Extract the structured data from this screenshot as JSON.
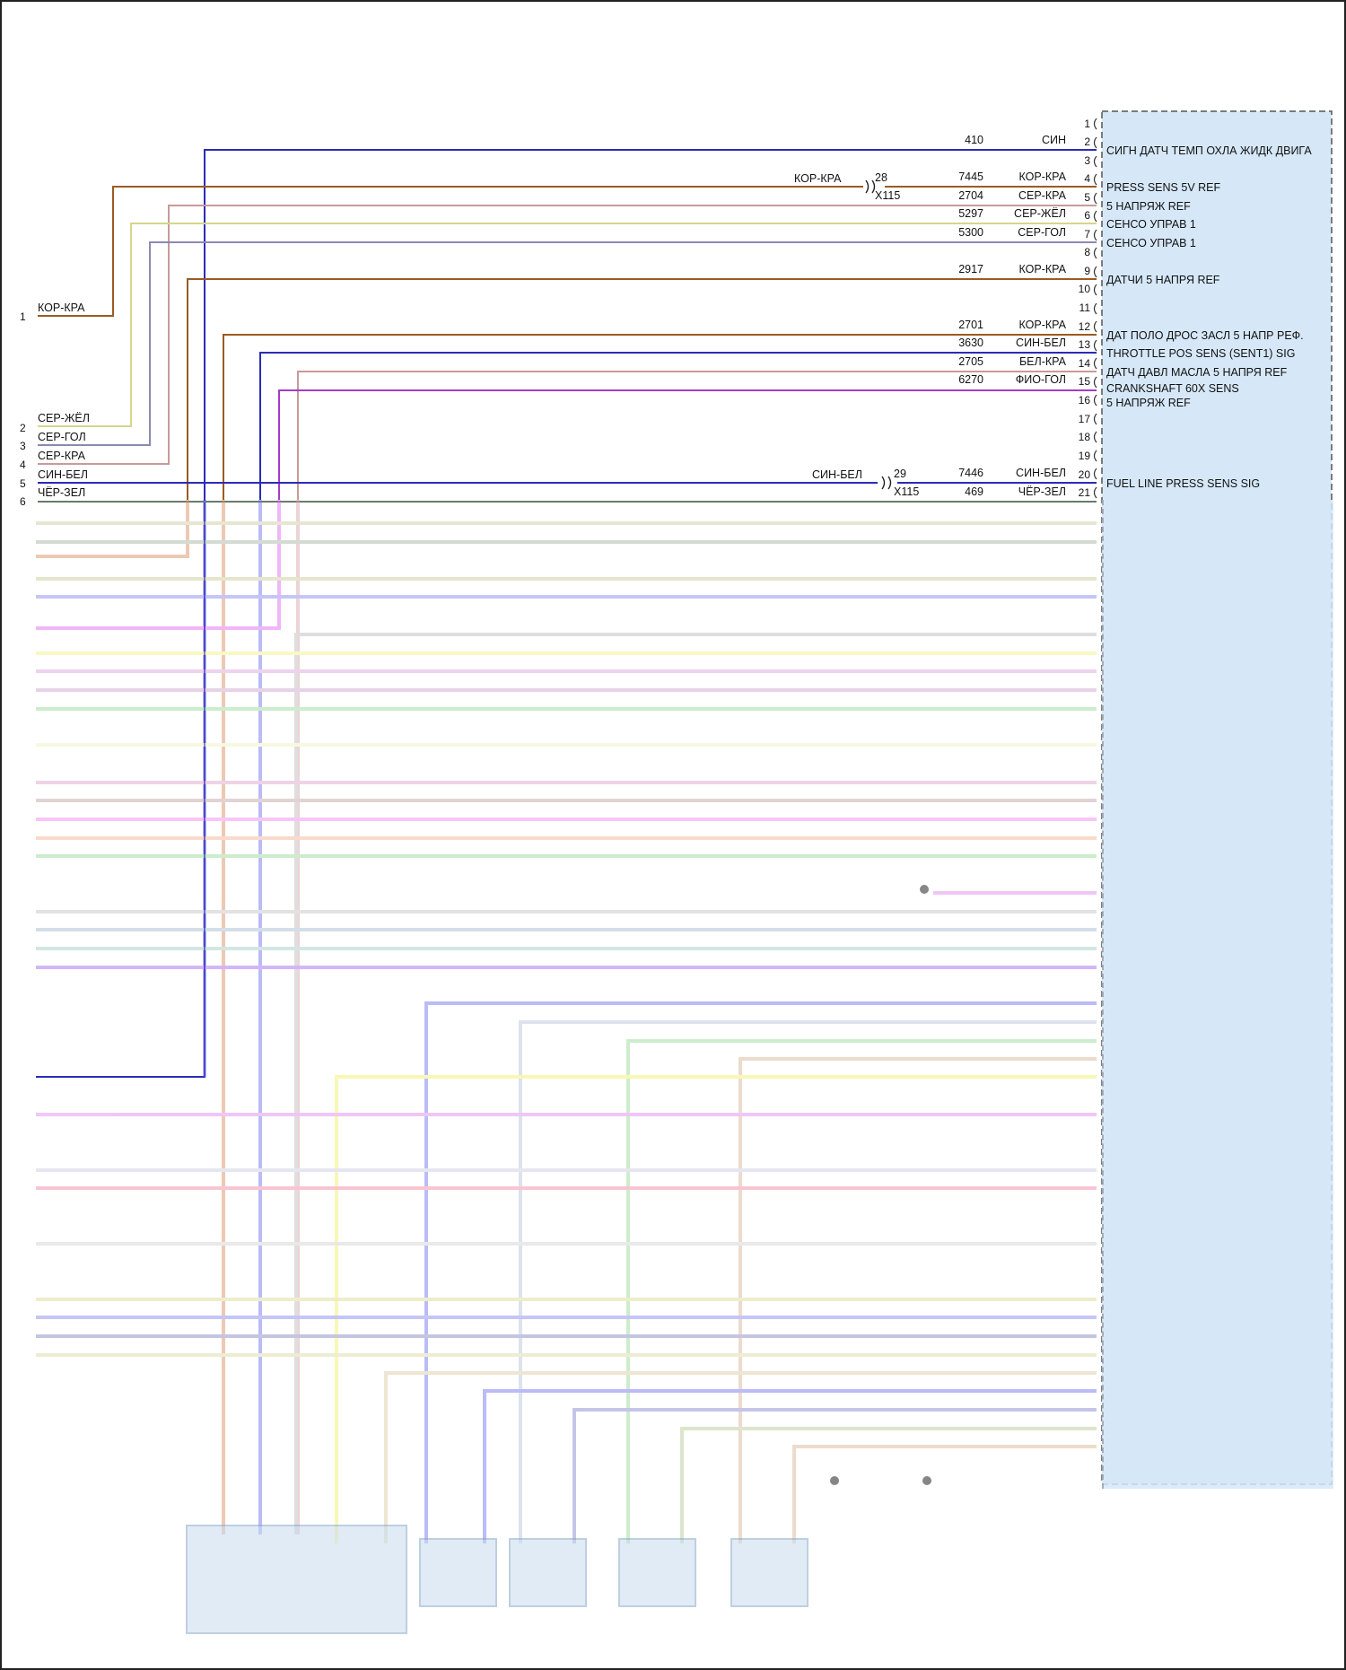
{
  "connector_labels": {
    "top": "28",
    "top_id": "X115",
    "top_color": "КОР-КРА",
    "bottom": "29",
    "bottom_id": "X115",
    "bottom_color": "СИН-БЕЛ"
  },
  "left_pins": [
    {
      "pin": "1",
      "color": "КОР-КРА"
    },
    {
      "pin": "2",
      "color": "СЕР-ЖЁЛ"
    },
    {
      "pin": "3",
      "color": "СЕР-ГОЛ"
    },
    {
      "pin": "4",
      "color": "СЕР-КРА"
    },
    {
      "pin": "5",
      "color": "СИН-БЕЛ"
    },
    {
      "pin": "6",
      "color": "ЧЁР-ЗЕЛ"
    }
  ],
  "ecm_pins": [
    {
      "pin": "1",
      "circuit": "",
      "color": "",
      "function": ""
    },
    {
      "pin": "2",
      "circuit": "410",
      "color": "СИН",
      "function": "СИГН ДАТЧ ТЕМП ОХЛА ЖИДК ДВИГА"
    },
    {
      "pin": "3",
      "circuit": "",
      "color": "",
      "function": ""
    },
    {
      "pin": "4",
      "circuit": "7445",
      "color": "КОР-КРА",
      "function": "PRESS SENS 5V REF"
    },
    {
      "pin": "5",
      "circuit": "2704",
      "color": "СЕР-КРА",
      "function": "5 НАПРЯЖ REF"
    },
    {
      "pin": "6",
      "circuit": "5297",
      "color": "СЕР-ЖЁЛ",
      "function": "СЕНСО УПРАВ 1"
    },
    {
      "pin": "7",
      "circuit": "5300",
      "color": "СЕР-ГОЛ",
      "function": "СЕНСО УПРАВ 1"
    },
    {
      "pin": "8",
      "circuit": "",
      "color": "",
      "function": ""
    },
    {
      "pin": "9",
      "circuit": "2917",
      "color": "КОР-КРА",
      "function": "ДАТЧИ 5 НАПРЯ REF"
    },
    {
      "pin": "10",
      "circuit": "",
      "color": "",
      "function": ""
    },
    {
      "pin": "11",
      "circuit": "",
      "color": "",
      "function": ""
    },
    {
      "pin": "12",
      "circuit": "2701",
      "color": "КОР-КРА",
      "function": "ДАТ ПОЛО ДРОС ЗАСЛ 5 НАПР РЕФ."
    },
    {
      "pin": "13",
      "circuit": "3630",
      "color": "СИН-БЕЛ",
      "function": "THROTTLE POS SENS (SENT1) SIG"
    },
    {
      "pin": "14",
      "circuit": "2705",
      "color": "БЕЛ-КРА",
      "function": "ДАТЧ ДАВЛ МАСЛА 5 НАПРЯ REF"
    },
    {
      "pin": "15",
      "circuit": "6270",
      "color": "ФИО-ГОЛ",
      "function": "CRANKSHAFT 60X SENS"
    },
    {
      "pin": "16",
      "circuit": "",
      "color": "",
      "function": "5 НАПРЯЖ REF"
    },
    {
      "pin": "17",
      "circuit": "",
      "color": "",
      "function": ""
    },
    {
      "pin": "18",
      "circuit": "",
      "color": "",
      "function": ""
    },
    {
      "pin": "19",
      "circuit": "",
      "color": "",
      "function": ""
    },
    {
      "pin": "20",
      "circuit": "7446",
      "color": "СИН-БЕЛ",
      "function": "FUEL LINE PRESS SENS SIG"
    },
    {
      "pin": "21",
      "circuit": "469",
      "color": "ЧЁР-ЗЕЛ",
      "function": ""
    }
  ],
  "wire_colors": {
    "blue": "#2b2bb8",
    "brown": "#9a5b22",
    "pink_gray": "#c89a9a",
    "yellow": "#d6d68a",
    "gray_blue": "#8a8ab0",
    "violet": "#a43cc8",
    "ecm_fill": "#d6e8f8"
  }
}
